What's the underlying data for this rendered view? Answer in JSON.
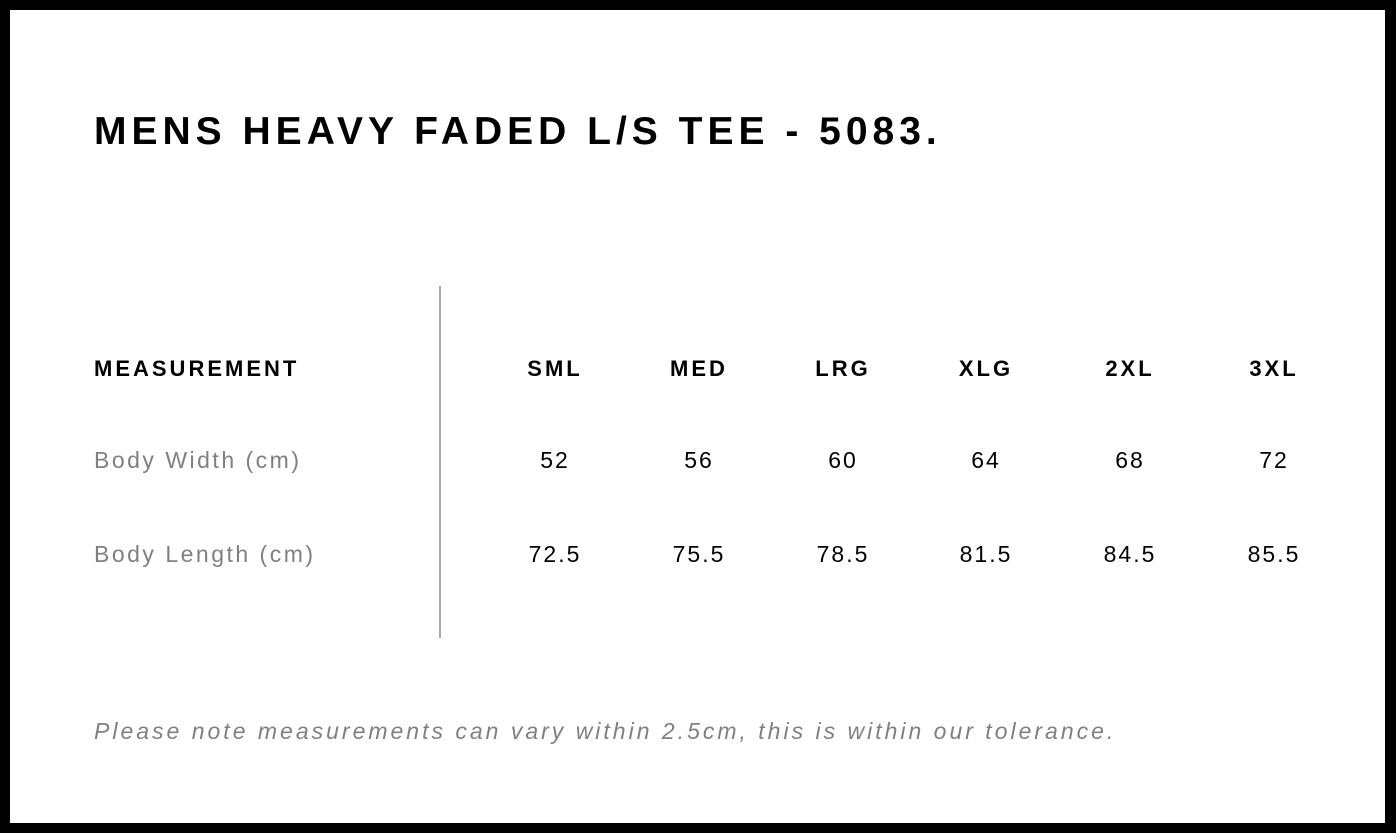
{
  "title": "MENS HEAVY FADED L/S TEE - 5083.",
  "table": {
    "header": "MEASUREMENT",
    "sizes": [
      "SML",
      "MED",
      "LRG",
      "XLG",
      "2XL",
      "3XL"
    ],
    "rows": [
      {
        "label": "Body Width (cm)",
        "values": [
          "52",
          "56",
          "60",
          "64",
          "68",
          "72"
        ]
      },
      {
        "label": "Body Length (cm)",
        "values": [
          "72.5",
          "75.5",
          "78.5",
          "81.5",
          "84.5",
          "85.5"
        ]
      }
    ]
  },
  "note": "Please note measurements can vary within 2.5cm, this is within our tolerance."
}
